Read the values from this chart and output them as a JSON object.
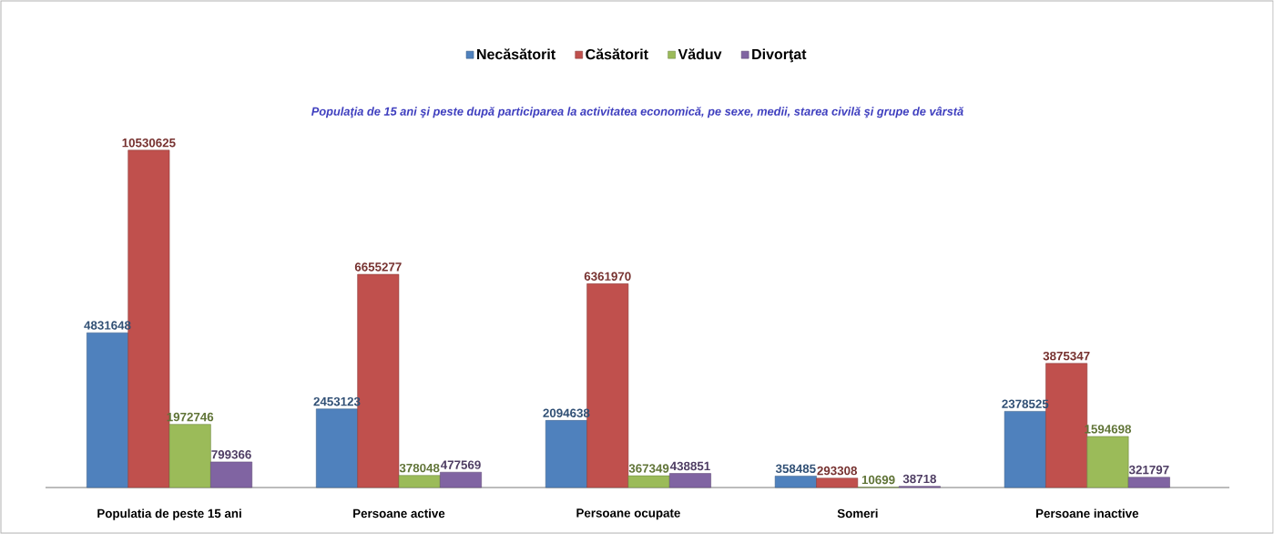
{
  "chart_data": {
    "type": "bar",
    "title": "Populaţia de 15 ani şi peste după participarea la activitatea economică, pe sexe, medii, starea civilă şi grupe de vârstă",
    "categories": [
      "Populatia de peste 15 ani",
      "Persoane active",
      "Persoane ocupate",
      "Someri",
      "Persoane inactive"
    ],
    "series": [
      {
        "name": "Necăsătorit",
        "color": "#4f81bd",
        "values": [
          4831648,
          2453123,
          2094638,
          358485,
          2378525
        ]
      },
      {
        "name": "Căsătorit",
        "color": "#c0504d",
        "values": [
          10530625,
          6655277,
          6361970,
          293308,
          3875347
        ]
      },
      {
        "name": "Văduv",
        "color": "#9bbb59",
        "values": [
          1972746,
          378048,
          367349,
          10699,
          1594698
        ]
      },
      {
        "name": "Divorţat",
        "color": "#8064a2",
        "values": [
          799366,
          477569,
          438851,
          38718,
          321797
        ]
      }
    ],
    "data_labels": true,
    "legend": "top"
  }
}
